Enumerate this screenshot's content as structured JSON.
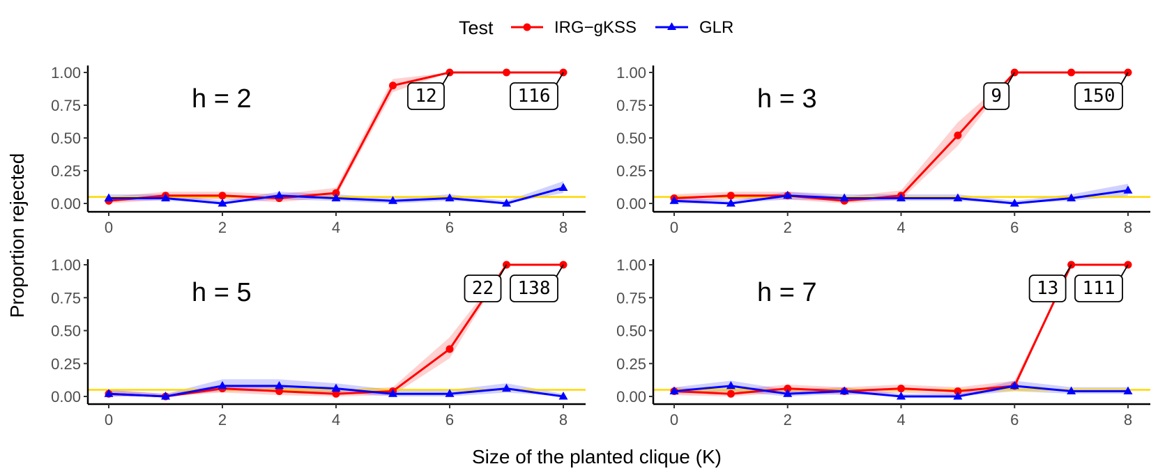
{
  "chart_data": {
    "type": "line",
    "xlabel": "Size of the planted clique (K)",
    "ylabel": "Proportion rejected",
    "xlim": [
      0,
      8
    ],
    "ylim": [
      0,
      1
    ],
    "x_ticks": [
      0,
      2,
      4,
      6,
      8
    ],
    "y_ticks": [
      "0.00",
      "0.25",
      "0.50",
      "0.75",
      "1.00"
    ],
    "reference_line": {
      "y": 0.05,
      "color": "#FFD700"
    },
    "legend": {
      "title": "Test",
      "position": "top",
      "entries": [
        {
          "name": "IRG−gKSS",
          "color": "#FF0000",
          "marker": "circle"
        },
        {
          "name": "GLR",
          "color": "#0000FF",
          "marker": "triangle"
        }
      ]
    },
    "x": [
      0,
      1,
      2,
      3,
      4,
      5,
      6,
      7,
      8
    ],
    "panels": [
      {
        "label": "h = 2",
        "series": [
          {
            "name": "IRG−gKSS",
            "values": [
              0.02,
              0.06,
              0.06,
              0.04,
              0.08,
              0.9,
              1.0,
              1.0,
              1.0
            ],
            "band_low": [
              0.0,
              0.03,
              0.03,
              0.01,
              0.05,
              0.85,
              1.0,
              1.0,
              1.0
            ],
            "band_high": [
              0.05,
              0.09,
              0.09,
              0.07,
              0.12,
              0.95,
              1.0,
              1.0,
              1.0
            ]
          },
          {
            "name": "GLR",
            "values": [
              0.04,
              0.04,
              0.0,
              0.06,
              0.04,
              0.02,
              0.04,
              0.0,
              0.12
            ],
            "band_low": [
              0.02,
              0.02,
              0.0,
              0.03,
              0.02,
              0.0,
              0.02,
              0.0,
              0.08
            ],
            "band_high": [
              0.07,
              0.07,
              0.02,
              0.09,
              0.07,
              0.04,
              0.07,
              0.02,
              0.17
            ]
          }
        ],
        "annotations": [
          {
            "text": "12",
            "x": 6
          },
          {
            "text": "116",
            "x": 8
          }
        ]
      },
      {
        "label": "h = 3",
        "series": [
          {
            "name": "IRG−gKSS",
            "values": [
              0.04,
              0.06,
              0.06,
              0.02,
              0.06,
              0.52,
              1.0,
              1.0,
              1.0
            ],
            "band_low": [
              0.01,
              0.03,
              0.03,
              0.0,
              0.03,
              0.44,
              1.0,
              1.0,
              1.0
            ],
            "band_high": [
              0.07,
              0.09,
              0.09,
              0.05,
              0.1,
              0.62,
              1.0,
              1.0,
              1.0
            ]
          },
          {
            "name": "GLR",
            "values": [
              0.02,
              0.0,
              0.06,
              0.04,
              0.04,
              0.04,
              0.0,
              0.04,
              0.1
            ],
            "band_low": [
              0.0,
              0.0,
              0.03,
              0.02,
              0.02,
              0.02,
              0.0,
              0.02,
              0.06
            ],
            "band_high": [
              0.05,
              0.02,
              0.09,
              0.07,
              0.07,
              0.07,
              0.02,
              0.07,
              0.15
            ]
          }
        ],
        "annotations": [
          {
            "text": "9",
            "x": 6
          },
          {
            "text": "150",
            "x": 8
          }
        ]
      },
      {
        "label": "h = 5",
        "series": [
          {
            "name": "IRG−gKSS",
            "values": [
              0.02,
              0.0,
              0.06,
              0.04,
              0.02,
              0.04,
              0.36,
              1.0,
              1.0
            ],
            "band_low": [
              0.0,
              0.0,
              0.03,
              0.01,
              0.0,
              0.01,
              0.29,
              1.0,
              1.0
            ],
            "band_high": [
              0.05,
              0.02,
              0.09,
              0.07,
              0.05,
              0.07,
              0.45,
              1.0,
              1.0
            ]
          },
          {
            "name": "GLR",
            "values": [
              0.02,
              0.0,
              0.08,
              0.08,
              0.06,
              0.02,
              0.02,
              0.06,
              0.0
            ],
            "band_low": [
              0.0,
              0.0,
              0.04,
              0.04,
              0.03,
              0.0,
              0.0,
              0.03,
              0.0
            ],
            "band_high": [
              0.05,
              0.02,
              0.13,
              0.13,
              0.1,
              0.05,
              0.05,
              0.1,
              0.02
            ]
          }
        ],
        "annotations": [
          {
            "text": "22",
            "x": 7
          },
          {
            "text": "138",
            "x": 8
          }
        ]
      },
      {
        "label": "h = 7",
        "series": [
          {
            "name": "IRG−gKSS",
            "values": [
              0.04,
              0.02,
              0.06,
              0.04,
              0.06,
              0.04,
              0.08,
              1.0,
              1.0
            ],
            "band_low": [
              0.01,
              0.0,
              0.03,
              0.01,
              0.03,
              0.01,
              0.05,
              1.0,
              1.0
            ],
            "band_high": [
              0.07,
              0.05,
              0.09,
              0.07,
              0.09,
              0.07,
              0.12,
              1.0,
              1.0
            ]
          },
          {
            "name": "GLR",
            "values": [
              0.04,
              0.08,
              0.02,
              0.04,
              0.0,
              0.0,
              0.08,
              0.04,
              0.04
            ],
            "band_low": [
              0.02,
              0.04,
              0.0,
              0.02,
              0.0,
              0.0,
              0.04,
              0.02,
              0.02
            ],
            "band_high": [
              0.07,
              0.12,
              0.05,
              0.07,
              0.02,
              0.02,
              0.12,
              0.07,
              0.07
            ]
          }
        ],
        "annotations": [
          {
            "text": "13",
            "x": 7
          },
          {
            "text": "111",
            "x": 8
          }
        ]
      }
    ]
  }
}
